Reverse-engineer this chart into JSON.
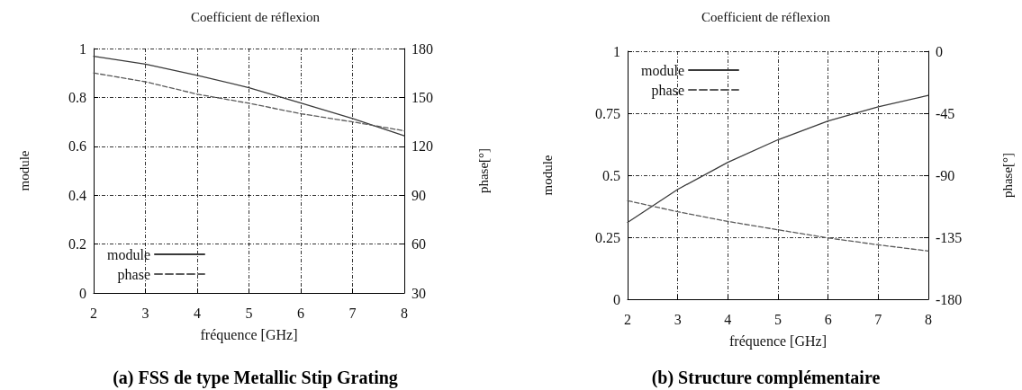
{
  "chart_data": [
    {
      "type": "line",
      "title": "Coefficient de réflexion",
      "xlabel": "fréquence [GHz]",
      "ylabel": "module",
      "y2label": "phase[°]",
      "annotations": [
        "(a) FSS de type Metallic Stip Grating"
      ],
      "x": [
        2,
        3,
        4,
        5,
        6,
        7,
        8
      ],
      "series": [
        {
          "name": "module",
          "color": "#3a3a3a",
          "values": [
            0.968,
            0.936,
            0.89,
            0.84,
            0.777,
            0.714,
            0.643
          ]
        },
        {
          "name": "phase",
          "color": "#5a5a5a",
          "axis": "y2",
          "line_style": "dashed",
          "values": [
            165,
            159.6,
            152,
            146.4,
            140,
            135,
            129.5
          ]
        }
      ],
      "xlim": [
        2,
        8
      ],
      "xticks": [
        2,
        3,
        4,
        5,
        6,
        7,
        8
      ],
      "ylim": [
        0,
        1
      ],
      "yticks": [
        0,
        0.2,
        0.4,
        0.6,
        0.8,
        1
      ],
      "y2lim": [
        30,
        180
      ],
      "y2ticks": [
        30,
        60,
        90,
        120,
        150,
        180
      ],
      "grid": true,
      "legend": "bottom left",
      "marker": "none"
    },
    {
      "type": "line",
      "title": "Coefficient de réflexion",
      "xlabel": "fréquence [GHz]",
      "ylabel": "module",
      "y2label": "phase[°]",
      "annotations": [
        "(b) Structure complémentaire"
      ],
      "x": [
        2,
        3,
        4,
        5,
        6,
        7,
        8
      ],
      "series": [
        {
          "name": "module",
          "color": "#3a3a3a",
          "values": [
            0.31,
            0.443,
            0.552,
            0.643,
            0.719,
            0.776,
            0.822
          ]
        },
        {
          "name": "phase",
          "color": "#5a5a5a",
          "axis": "y2",
          "line_style": "dashed",
          "values": [
            -108.5,
            -116.5,
            -123.5,
            -129.6,
            -135.5,
            -140.5,
            -145
          ]
        }
      ],
      "xlim": [
        2,
        8
      ],
      "xticks": [
        2,
        3,
        4,
        5,
        6,
        7,
        8
      ],
      "ylim": [
        0,
        1
      ],
      "yticks": [
        0,
        0.25,
        0.5,
        0.75,
        1
      ],
      "y2lim": [
        -180,
        0
      ],
      "y2ticks": [
        -180,
        -135,
        -90,
        -45,
        0
      ],
      "grid": true,
      "legend": "top left",
      "marker": "none"
    }
  ]
}
